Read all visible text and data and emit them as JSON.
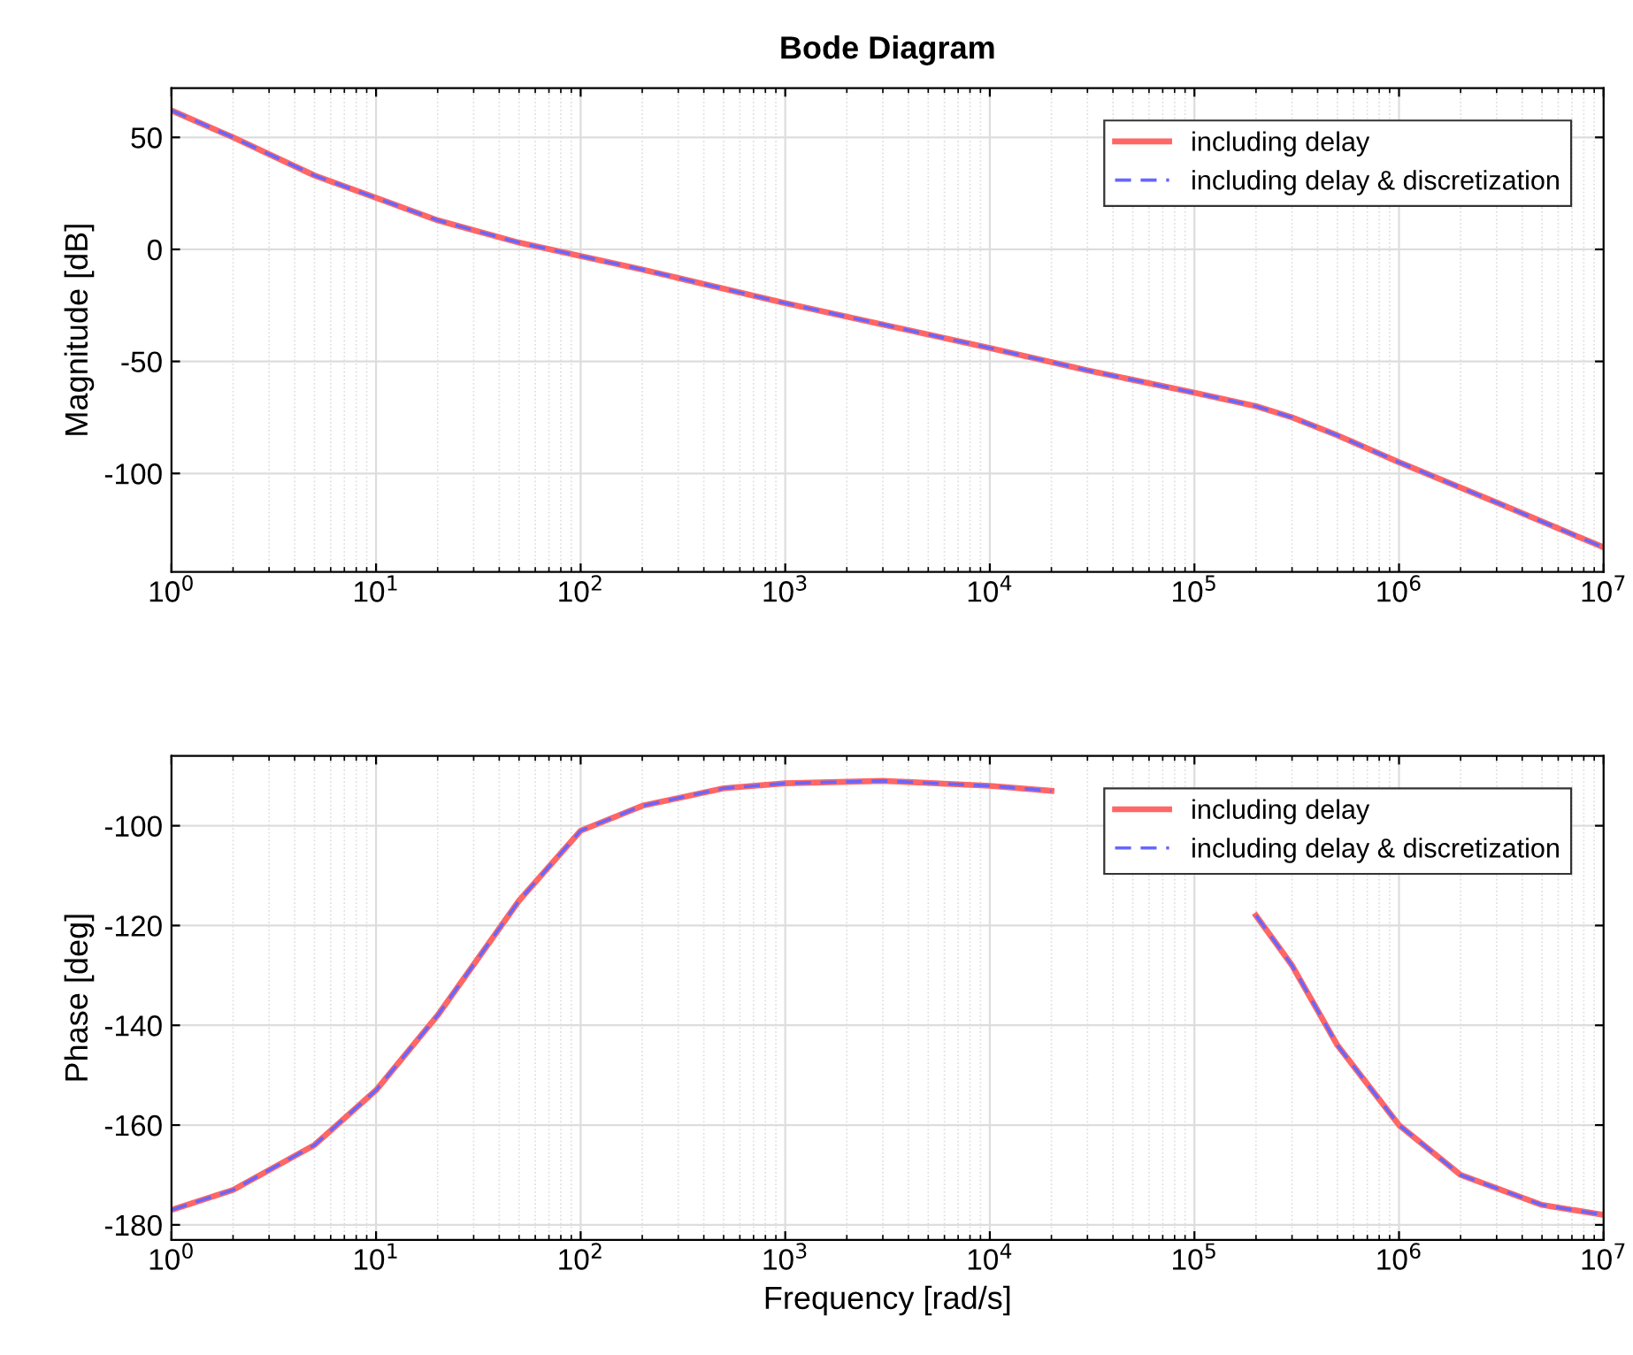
{
  "chart_data": [
    {
      "type": "line",
      "title": "Bode Diagram",
      "ylabel": "Magnitude [dB]",
      "log": "x",
      "grid": true,
      "legend": "top right",
      "x": [
        1,
        2,
        5,
        10,
        20,
        50,
        100,
        200,
        1000,
        10000,
        30000,
        100000,
        200000,
        300000,
        500000,
        1000000,
        3000000,
        10000000
      ],
      "xlim": [
        1,
        10000000
      ],
      "xticks": [
        {
          "value": 1,
          "label": "10$^{0}$"
        },
        {
          "value": 10,
          "label": "10$^{1}$"
        },
        {
          "value": 100,
          "label": "10$^{2}$"
        },
        {
          "value": 1000,
          "label": "10$^{3}$"
        },
        {
          "value": 10000,
          "label": "10$^{4}$"
        },
        {
          "value": 100000,
          "label": "10$^{5}$"
        },
        {
          "value": 1000000,
          "label": "10$^{6}$"
        },
        {
          "value": 10000000,
          "label": "10$^{7}$"
        }
      ],
      "ylim": [
        -144,
        72
      ],
      "yticks": [
        -100,
        -50,
        0,
        50
      ],
      "series": [
        {
          "name": "including delay",
          "color": "#ff6666",
          "line_style": "solid",
          "values": [
            62,
            50,
            33,
            23,
            13,
            3,
            -3,
            -9,
            -24,
            -44,
            -54,
            -64,
            -70,
            -75,
            -83,
            -95,
            -113,
            -133
          ]
        },
        {
          "name": "including delay & discretization",
          "color": "#6666ff",
          "line_style": "dashed",
          "values": [
            62,
            50,
            33,
            23,
            13,
            3,
            -3,
            -9,
            -24,
            -44,
            -54,
            -64,
            -70,
            -75,
            -83,
            -95,
            -113,
            -133
          ]
        }
      ]
    },
    {
      "type": "line",
      "xlabel": "Frequency [rad/s]",
      "ylabel": "Phase [deg]",
      "log": "x",
      "grid": true,
      "legend": "top right",
      "x": [
        1,
        2,
        5,
        10,
        20,
        50,
        100,
        200,
        500,
        1000,
        3000,
        10000,
        20000,
        50000,
        100000,
        200000,
        300000,
        500000,
        1000000,
        2000000,
        5000000,
        10000000
      ],
      "xlim": [
        1,
        10000000
      ],
      "xticks": [
        {
          "value": 1,
          "label": "10$^{0}$"
        },
        {
          "value": 10,
          "label": "10$^{1}$"
        },
        {
          "value": 100,
          "label": "10$^{2}$"
        },
        {
          "value": 1000,
          "label": "10$^{3}$"
        },
        {
          "value": 10000,
          "label": "10$^{4}$"
        },
        {
          "value": 100000,
          "label": "10$^{5}$"
        },
        {
          "value": 1000000,
          "label": "10$^{6}$"
        },
        {
          "value": 10000000,
          "label": "10$^{7}$"
        }
      ],
      "ylim": [
        -183,
        -86
      ],
      "yticks": [
        -180,
        -160,
        -140,
        -120,
        -100
      ],
      "series": [
        {
          "name": "including delay",
          "color": "#ff6666",
          "line_style": "solid",
          "values": [
            -177,
            -173,
            -164,
            -153,
            -138,
            -115,
            -101,
            -96,
            -92.5,
            -91.5,
            -91,
            -92,
            -93,
            null,
            null,
            -118,
            -128,
            -144,
            -160,
            -170,
            -176,
            -178
          ]
        },
        {
          "name": "including delay & discretization",
          "color": "#6666ff",
          "line_style": "dashed",
          "values": [
            -177,
            -173,
            -164,
            -153,
            -138,
            -115,
            -101,
            -96,
            -92.5,
            -91.5,
            -91,
            -92,
            -93,
            null,
            null,
            -118,
            -128,
            -144,
            -160,
            -170,
            -176,
            -178
          ]
        }
      ]
    }
  ]
}
